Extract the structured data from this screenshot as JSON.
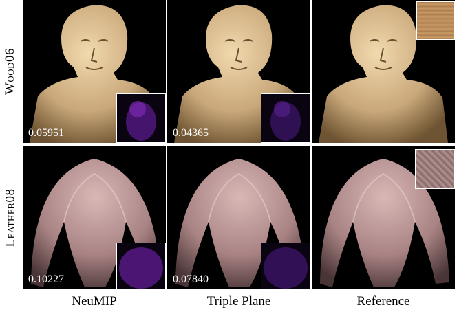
{
  "rows": [
    {
      "label": "Wood06",
      "metrics": [
        "0.05951",
        "0.04365",
        ""
      ]
    },
    {
      "label": "Leather08",
      "metrics": [
        "0.10227",
        "0.07840",
        ""
      ]
    }
  ],
  "columns": [
    "NeuMIP",
    "Triple Plane",
    "Reference"
  ],
  "colors": {
    "wood": "#c9a87a",
    "leather": "#b58f91",
    "error_map": "#5a1a8c",
    "background": "#000000"
  }
}
